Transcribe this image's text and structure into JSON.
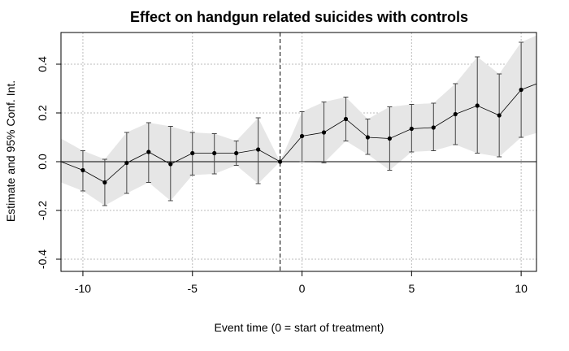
{
  "chart_data": {
    "type": "line",
    "title": "Effect on handgun related suicides with controls",
    "xlabel": "Event time (0 = start of treatment)",
    "ylabel": "Estimate and 95% Conf. Int.",
    "xlim": [
      -11,
      10.7
    ],
    "ylim": [
      -0.45,
      0.53
    ],
    "x_ticks": [
      -10,
      -5,
      0,
      5,
      10
    ],
    "y_ticks": [
      -0.4,
      -0.2,
      0.0,
      0.2,
      0.4
    ],
    "x_tick_labels": [
      "-10",
      "-5",
      "0",
      "5",
      "10"
    ],
    "y_tick_labels": [
      "-0.4",
      "-0.2",
      "0.0",
      "0.2",
      "0.4"
    ],
    "grid": true,
    "reference_lines": {
      "vertical_x": -1,
      "horizontal_y": 0
    },
    "points": [
      {
        "x": -11,
        "y": 0.0,
        "lo": -0.085,
        "hi": 0.095
      },
      {
        "x": -10,
        "y": -0.035,
        "lo": -0.12,
        "hi": 0.045
      },
      {
        "x": -9,
        "y": -0.085,
        "lo": -0.18,
        "hi": 0.01
      },
      {
        "x": -8,
        "y": -0.005,
        "lo": -0.13,
        "hi": 0.12
      },
      {
        "x": -7,
        "y": 0.04,
        "lo": -0.085,
        "hi": 0.16
      },
      {
        "x": -6,
        "y": -0.01,
        "lo": -0.16,
        "hi": 0.145
      },
      {
        "x": -5,
        "y": 0.035,
        "lo": -0.055,
        "hi": 0.12
      },
      {
        "x": -4,
        "y": 0.035,
        "lo": -0.05,
        "hi": 0.115
      },
      {
        "x": -3,
        "y": 0.035,
        "lo": -0.015,
        "hi": 0.085
      },
      {
        "x": -2,
        "y": 0.05,
        "lo": -0.09,
        "hi": 0.18
      },
      {
        "x": -1,
        "y": 0.0,
        "lo": 0.0,
        "hi": 0.0
      },
      {
        "x": 0,
        "y": 0.105,
        "lo": 0.0,
        "hi": 0.205
      },
      {
        "x": 1,
        "y": 0.12,
        "lo": -0.005,
        "hi": 0.245
      },
      {
        "x": 2,
        "y": 0.175,
        "lo": 0.085,
        "hi": 0.265
      },
      {
        "x": 3,
        "y": 0.1,
        "lo": 0.03,
        "hi": 0.175
      },
      {
        "x": 4,
        "y": 0.095,
        "lo": -0.035,
        "hi": 0.225
      },
      {
        "x": 5,
        "y": 0.135,
        "lo": 0.04,
        "hi": 0.235
      },
      {
        "x": 6,
        "y": 0.14,
        "lo": 0.045,
        "hi": 0.24
      },
      {
        "x": 7,
        "y": 0.195,
        "lo": 0.07,
        "hi": 0.32
      },
      {
        "x": 8,
        "y": 0.23,
        "lo": 0.035,
        "hi": 0.43
      },
      {
        "x": 9,
        "y": 0.19,
        "lo": 0.02,
        "hi": 0.36
      },
      {
        "x": 10,
        "y": 0.295,
        "lo": 0.1,
        "hi": 0.49
      },
      {
        "x": 11,
        "y": 0.33,
        "lo": 0.125,
        "hi": 0.53
      }
    ],
    "colors": {
      "band": "#e6e6e6",
      "line": "#000000",
      "grid": "#bbbbbb"
    }
  }
}
